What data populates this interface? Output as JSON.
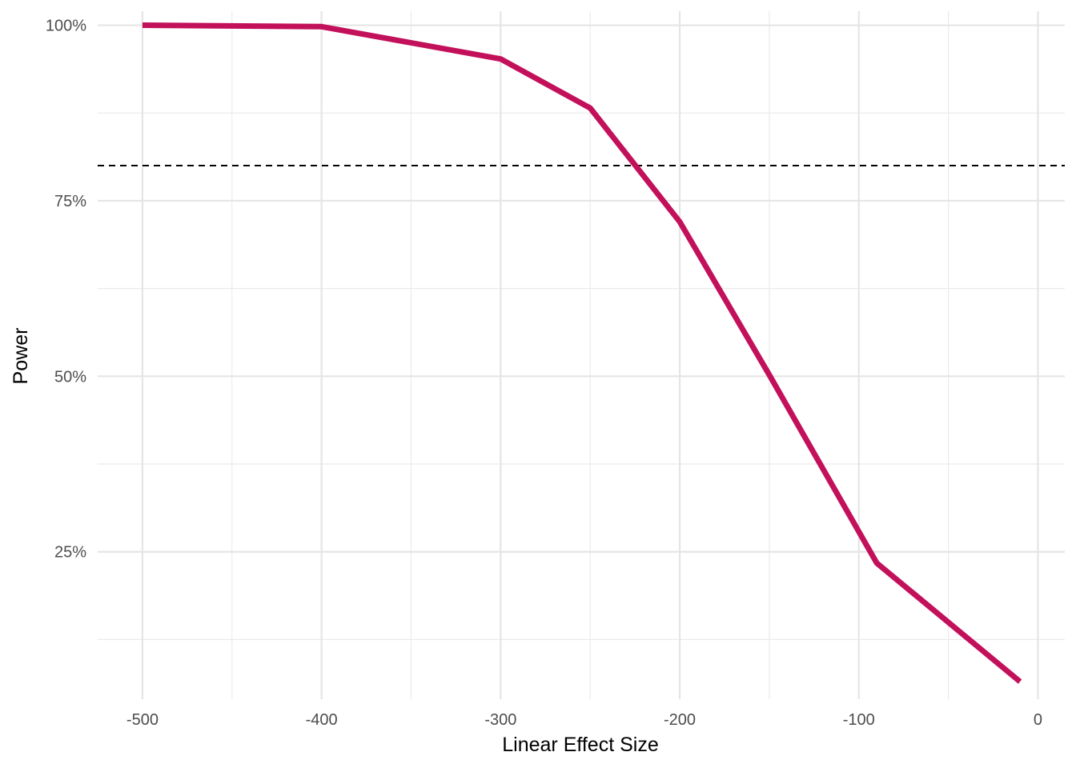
{
  "chart_data": {
    "type": "line",
    "title": "",
    "xlabel": "Linear Effect Size",
    "ylabel": "Power",
    "xlim": [
      -525,
      15
    ],
    "ylim": [
      0.04,
      1.02
    ],
    "grid": true,
    "x_ticks": [
      -500,
      -400,
      -300,
      -200,
      -100,
      0
    ],
    "x_tick_labels": [
      "-500",
      "-400",
      "-300",
      "-200",
      "-100",
      "0"
    ],
    "y_ticks": [
      0.25,
      0.5,
      0.75,
      1.0
    ],
    "y_tick_labels": [
      "25%",
      "50%",
      "75%",
      "100%"
    ],
    "series": [
      {
        "color": "#C2105A",
        "x": [
          -500,
          -400,
          -300,
          -250,
          -200,
          -150,
          -90,
          -10
        ],
        "y": [
          1.0,
          0.998,
          0.952,
          0.882,
          0.72,
          0.502,
          0.234,
          0.065
        ]
      }
    ],
    "reference_line": {
      "axis": "y",
      "value": 0.8,
      "style": "dashed",
      "color": "#000000"
    }
  }
}
